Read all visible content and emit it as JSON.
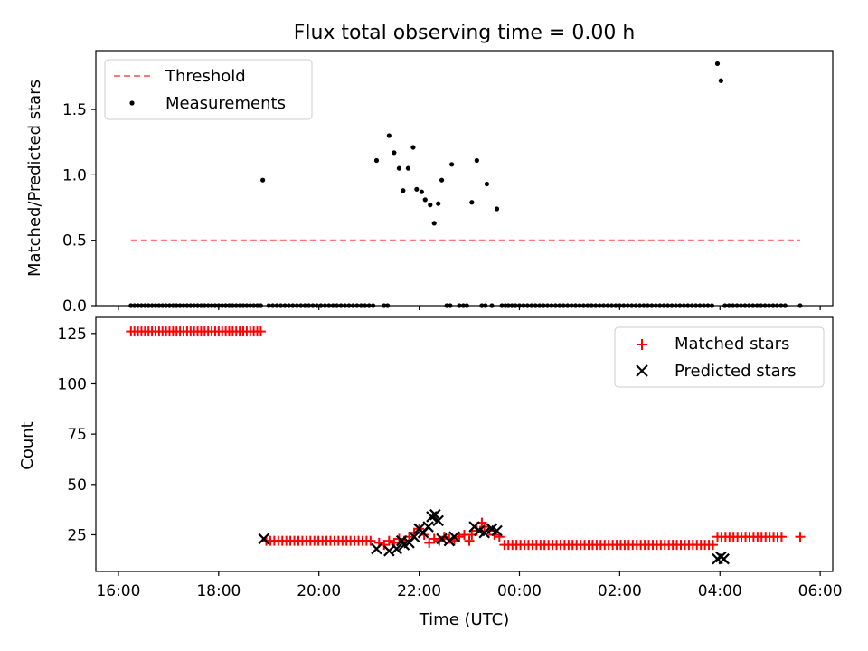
{
  "figure": {
    "title": "Flux total observing time = 0.00 h",
    "xlabel": "Time (UTC)"
  },
  "chart_data": [
    {
      "type": "scatter",
      "title": "Flux total observing time = 0.00 h",
      "ylabel": "Matched/Predicted stars",
      "xlabel": "",
      "x_unit": "hours since 16:00 UTC",
      "xlim": [
        15.55,
        30.25
      ],
      "ylim": [
        0.0,
        1.95
      ],
      "yticks": [
        0.0,
        0.5,
        1.0,
        1.5
      ],
      "ytick_labels": [
        "0.0",
        "0.5",
        "1.0",
        "1.5"
      ],
      "legend_position": "upper left",
      "legend": [
        "Threshold",
        "Measurements"
      ],
      "threshold": {
        "name": "Threshold",
        "value": 0.5,
        "x_range": [
          16.25,
          29.6
        ],
        "color": "#ff7777"
      },
      "series": [
        {
          "name": "Measurements",
          "color": "#000000",
          "points": [
            [
              18.88,
              0.96
            ],
            [
              21.15,
              1.11
            ],
            [
              21.4,
              1.3
            ],
            [
              21.5,
              1.17
            ],
            [
              21.6,
              1.05
            ],
            [
              21.68,
              0.88
            ],
            [
              21.78,
              1.05
            ],
            [
              21.88,
              1.21
            ],
            [
              21.95,
              0.89
            ],
            [
              22.05,
              0.87
            ],
            [
              22.12,
              0.81
            ],
            [
              22.22,
              0.77
            ],
            [
              22.3,
              0.63
            ],
            [
              22.38,
              0.78
            ],
            [
              22.45,
              0.96
            ],
            [
              22.65,
              1.08
            ],
            [
              23.05,
              0.79
            ],
            [
              23.15,
              1.11
            ],
            [
              23.35,
              0.93
            ],
            [
              23.55,
              0.74
            ],
            [
              27.95,
              1.85
            ],
            [
              28.02,
              1.72
            ],
            [
              16.25,
              0.0
            ],
            [
              16.32,
              0.0
            ],
            [
              16.39,
              0.0
            ],
            [
              16.46,
              0.0
            ],
            [
              16.53,
              0.0
            ],
            [
              16.6,
              0.0
            ],
            [
              16.67,
              0.0
            ],
            [
              16.74,
              0.0
            ],
            [
              16.81,
              0.0
            ],
            [
              16.88,
              0.0
            ],
            [
              16.95,
              0.0
            ],
            [
              17.02,
              0.0
            ],
            [
              17.09,
              0.0
            ],
            [
              17.16,
              0.0
            ],
            [
              17.23,
              0.0
            ],
            [
              17.3,
              0.0
            ],
            [
              17.37,
              0.0
            ],
            [
              17.44,
              0.0
            ],
            [
              17.51,
              0.0
            ],
            [
              17.58,
              0.0
            ],
            [
              17.65,
              0.0
            ],
            [
              17.72,
              0.0
            ],
            [
              17.79,
              0.0
            ],
            [
              17.86,
              0.0
            ],
            [
              17.93,
              0.0
            ],
            [
              18.0,
              0.0
            ],
            [
              18.07,
              0.0
            ],
            [
              18.14,
              0.0
            ],
            [
              18.21,
              0.0
            ],
            [
              18.28,
              0.0
            ],
            [
              18.35,
              0.0
            ],
            [
              18.42,
              0.0
            ],
            [
              18.49,
              0.0
            ],
            [
              18.56,
              0.0
            ],
            [
              18.63,
              0.0
            ],
            [
              18.7,
              0.0
            ],
            [
              18.77,
              0.0
            ],
            [
              18.84,
              0.0
            ],
            [
              19.0,
              0.0
            ],
            [
              19.08,
              0.0
            ],
            [
              19.16,
              0.0
            ],
            [
              19.24,
              0.0
            ],
            [
              19.32,
              0.0
            ],
            [
              19.4,
              0.0
            ],
            [
              19.48,
              0.0
            ],
            [
              19.56,
              0.0
            ],
            [
              19.64,
              0.0
            ],
            [
              19.72,
              0.0
            ],
            [
              19.8,
              0.0
            ],
            [
              19.88,
              0.0
            ],
            [
              19.96,
              0.0
            ],
            [
              20.04,
              0.0
            ],
            [
              20.12,
              0.0
            ],
            [
              20.2,
              0.0
            ],
            [
              20.28,
              0.0
            ],
            [
              20.36,
              0.0
            ],
            [
              20.44,
              0.0
            ],
            [
              20.52,
              0.0
            ],
            [
              20.6,
              0.0
            ],
            [
              20.68,
              0.0
            ],
            [
              20.76,
              0.0
            ],
            [
              20.84,
              0.0
            ],
            [
              20.92,
              0.0
            ],
            [
              21.0,
              0.0
            ],
            [
              21.08,
              0.0
            ],
            [
              21.3,
              0.0
            ],
            [
              21.37,
              0.0
            ],
            [
              22.55,
              0.0
            ],
            [
              22.62,
              0.0
            ],
            [
              22.8,
              0.0
            ],
            [
              22.88,
              0.0
            ],
            [
              22.95,
              0.0
            ],
            [
              23.25,
              0.0
            ],
            [
              23.32,
              0.0
            ],
            [
              23.45,
              0.0
            ],
            [
              23.65,
              0.0
            ],
            [
              23.72,
              0.0
            ],
            [
              23.78,
              0.0
            ],
            [
              23.85,
              0.0
            ],
            [
              23.92,
              0.0
            ],
            [
              24.0,
              0.0
            ],
            [
              24.08,
              0.0
            ],
            [
              24.16,
              0.0
            ],
            [
              24.24,
              0.0
            ],
            [
              24.32,
              0.0
            ],
            [
              24.4,
              0.0
            ],
            [
              24.48,
              0.0
            ],
            [
              24.56,
              0.0
            ],
            [
              24.64,
              0.0
            ],
            [
              24.72,
              0.0
            ],
            [
              24.8,
              0.0
            ],
            [
              24.88,
              0.0
            ],
            [
              24.96,
              0.0
            ],
            [
              25.04,
              0.0
            ],
            [
              25.12,
              0.0
            ],
            [
              25.2,
              0.0
            ],
            [
              25.28,
              0.0
            ],
            [
              25.36,
              0.0
            ],
            [
              25.44,
              0.0
            ],
            [
              25.52,
              0.0
            ],
            [
              25.6,
              0.0
            ],
            [
              25.68,
              0.0
            ],
            [
              25.76,
              0.0
            ],
            [
              25.84,
              0.0
            ],
            [
              25.92,
              0.0
            ],
            [
              26.0,
              0.0
            ],
            [
              26.08,
              0.0
            ],
            [
              26.16,
              0.0
            ],
            [
              26.24,
              0.0
            ],
            [
              26.32,
              0.0
            ],
            [
              26.4,
              0.0
            ],
            [
              26.48,
              0.0
            ],
            [
              26.56,
              0.0
            ],
            [
              26.64,
              0.0
            ],
            [
              26.72,
              0.0
            ],
            [
              26.8,
              0.0
            ],
            [
              26.88,
              0.0
            ],
            [
              26.96,
              0.0
            ],
            [
              27.04,
              0.0
            ],
            [
              27.12,
              0.0
            ],
            [
              27.2,
              0.0
            ],
            [
              27.28,
              0.0
            ],
            [
              27.36,
              0.0
            ],
            [
              27.44,
              0.0
            ],
            [
              27.52,
              0.0
            ],
            [
              27.6,
              0.0
            ],
            [
              27.68,
              0.0
            ],
            [
              27.76,
              0.0
            ],
            [
              27.84,
              0.0
            ],
            [
              28.1,
              0.0
            ],
            [
              28.18,
              0.0
            ],
            [
              28.26,
              0.0
            ],
            [
              28.34,
              0.0
            ],
            [
              28.42,
              0.0
            ],
            [
              28.5,
              0.0
            ],
            [
              28.58,
              0.0
            ],
            [
              28.66,
              0.0
            ],
            [
              28.74,
              0.0
            ],
            [
              28.82,
              0.0
            ],
            [
              28.9,
              0.0
            ],
            [
              28.98,
              0.0
            ],
            [
              29.06,
              0.0
            ],
            [
              29.14,
              0.0
            ],
            [
              29.22,
              0.0
            ],
            [
              29.3,
              0.0
            ],
            [
              29.6,
              0.0
            ]
          ]
        }
      ]
    },
    {
      "type": "scatter",
      "title": "",
      "ylabel": "Count",
      "xlabel": "Time (UTC)",
      "x_unit": "hours since 16:00 UTC",
      "xlim": [
        15.55,
        30.25
      ],
      "ylim": [
        6.8,
        133.0
      ],
      "yticks": [
        25,
        50,
        75,
        100,
        125
      ],
      "ytick_labels": [
        "25",
        "50",
        "75",
        "100",
        "125"
      ],
      "xticks": [
        16,
        18,
        20,
        22,
        24,
        26,
        28,
        30
      ],
      "xtick_labels": [
        "16:00",
        "18:00",
        "20:00",
        "22:00",
        "00:00",
        "02:00",
        "04:00",
        "06:00"
      ],
      "legend_position": "upper right",
      "legend": [
        "Matched stars",
        "Predicted stars"
      ],
      "series": [
        {
          "name": "Matched stars",
          "marker": "plus",
          "color": "#ff0000",
          "segments": [
            {
              "x_start": 16.25,
              "x_end": 18.84,
              "step": 0.07,
              "y": 126
            },
            {
              "x_start": 18.95,
              "x_end": 21.1,
              "step": 0.08,
              "y": 22
            },
            {
              "x_start": 23.7,
              "x_end": 27.9,
              "step": 0.08,
              "y": 20
            },
            {
              "x_start": 27.95,
              "x_end": 29.3,
              "step": 0.08,
              "y": 24
            }
          ],
          "points": [
            [
              21.2,
              21
            ],
            [
              21.3,
              20
            ],
            [
              21.4,
              22
            ],
            [
              21.5,
              21
            ],
            [
              21.6,
              23
            ],
            [
              21.7,
              22
            ],
            [
              21.8,
              24
            ],
            [
              21.9,
              26
            ],
            [
              22.0,
              28
            ],
            [
              22.1,
              25
            ],
            [
              22.2,
              21
            ],
            [
              22.3,
              23
            ],
            [
              22.4,
              22
            ],
            [
              22.5,
              24
            ],
            [
              22.6,
              23
            ],
            [
              22.7,
              22
            ],
            [
              22.8,
              24
            ],
            [
              22.9,
              25
            ],
            [
              23.0,
              22
            ],
            [
              23.05,
              25
            ],
            [
              23.15,
              27
            ],
            [
              23.25,
              31
            ],
            [
              23.3,
              29
            ],
            [
              23.4,
              27
            ],
            [
              23.5,
              25
            ],
            [
              23.6,
              24
            ],
            [
              29.6,
              24
            ]
          ]
        },
        {
          "name": "Predicted stars",
          "marker": "x",
          "color": "#000000",
          "points": [
            [
              18.9,
              23
            ],
            [
              21.15,
              18
            ],
            [
              21.4,
              17
            ],
            [
              21.55,
              18
            ],
            [
              21.65,
              22
            ],
            [
              21.7,
              20
            ],
            [
              21.8,
              21
            ],
            [
              21.9,
              24
            ],
            [
              22.0,
              28
            ],
            [
              22.08,
              26
            ],
            [
              22.18,
              29
            ],
            [
              22.25,
              34
            ],
            [
              22.32,
              35
            ],
            [
              22.38,
              32
            ],
            [
              22.45,
              23
            ],
            [
              22.6,
              22
            ],
            [
              22.7,
              24
            ],
            [
              23.1,
              29
            ],
            [
              23.2,
              27
            ],
            [
              23.3,
              26
            ],
            [
              23.45,
              28
            ],
            [
              23.55,
              27
            ],
            [
              27.95,
              13
            ],
            [
              28.02,
              14
            ],
            [
              28.08,
              13
            ]
          ]
        }
      ]
    }
  ]
}
